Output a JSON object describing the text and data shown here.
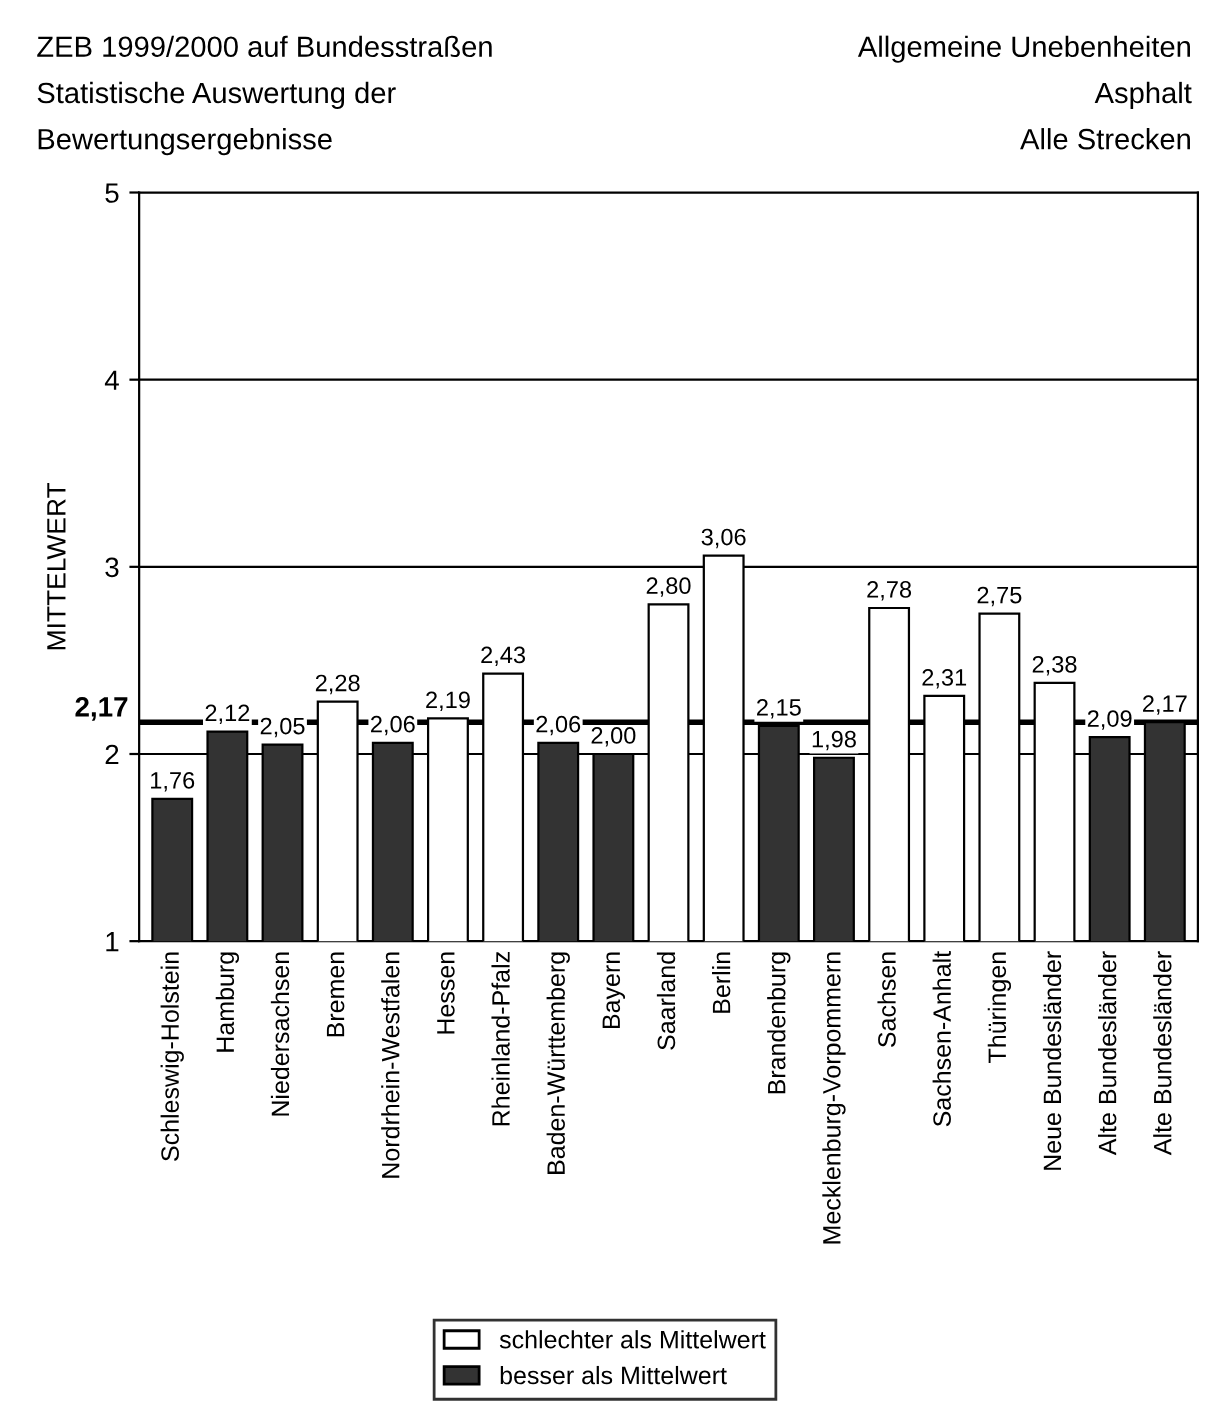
{
  "chart_data": {
    "type": "bar",
    "title": "ZEB 1999/2000 auf Bundesstraßen\nStatistische Auswertung der\nBewertungsergebnisse",
    "subtitle": "Allgemeine Unebenheiten\nAsphalt\nAlle Strecken",
    "ylabel": "MITTELWERT",
    "categories": [
      "Schleswig-Holstein",
      "Hamburg",
      "Niedersachsen",
      "Bremen",
      "Nordrhein-Westfalen",
      "Hessen",
      "Rheinland-Pfalz",
      "Baden-Württemberg",
      "Bayern",
      "Saarland",
      "Berlin",
      "Brandenburg",
      "Mecklenburg-Vorpommern",
      "Sachsen",
      "Sachsen-Anhalt",
      "Thüringen",
      "Neue Bundesländer",
      "Alte Bundesländer",
      "Alte Bundesländer"
    ],
    "series": [
      {
        "name": "schlechter als Mittelwert",
        "color": "#ffffff",
        "values": [
          null,
          null,
          null,
          2.28,
          null,
          2.19,
          2.43,
          null,
          null,
          2.8,
          3.06,
          null,
          null,
          2.78,
          2.31,
          2.75,
          2.38,
          null,
          null
        ],
        "value_labels": [
          null,
          null,
          null,
          "2,28",
          null,
          "2,19",
          "2,43",
          null,
          null,
          "2,80",
          "3,06",
          null,
          null,
          "2,78",
          "2,31",
          "2,75",
          "2,38",
          null,
          null
        ]
      },
      {
        "name": "besser als Mittelwert",
        "color": "#333333",
        "values": [
          1.76,
          2.12,
          2.05,
          null,
          2.06,
          null,
          null,
          2.06,
          2.0,
          null,
          null,
          2.15,
          1.98,
          null,
          null,
          null,
          null,
          2.09,
          2.17
        ],
        "value_labels": [
          "1,76",
          "2,12",
          "2,05",
          null,
          "2,06",
          null,
          null,
          "2,06",
          "2,00",
          null,
          null,
          "2,15",
          "1,98",
          null,
          null,
          null,
          null,
          "2,09",
          "2,17"
        ]
      }
    ],
    "ylim": [
      1,
      5
    ],
    "yticks": [
      1,
      2,
      3,
      4,
      5
    ],
    "grid": "y",
    "legend": "bottom",
    "ref_lines": [
      {
        "axis": "y",
        "value": 2.17,
        "label": "2,17",
        "color": "#000000"
      }
    ]
  }
}
